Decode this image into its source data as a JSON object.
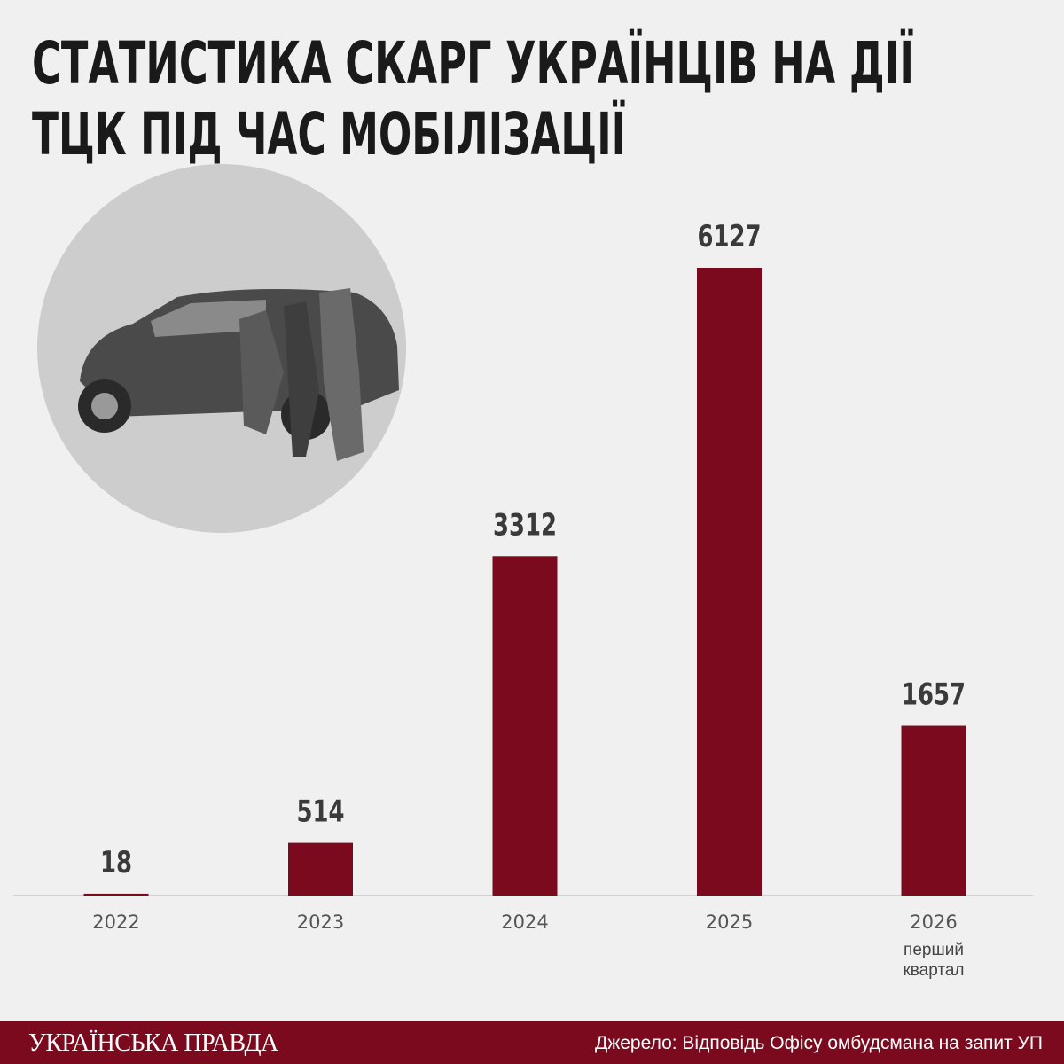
{
  "chart_data": {
    "type": "bar",
    "title": [
      "СТАТИСТИКА СКАРГ УКРАЇНЦІВ НА ДІЇ",
      "ТЦК ПІД ЧАС МОБІЛІЗАЦІЇ"
    ],
    "categories": [
      "2022",
      "2023",
      "2024",
      "2025",
      "2026"
    ],
    "values": [
      18,
      514,
      3312,
      6127,
      1657
    ],
    "color": "#7b0a1e",
    "note": "перший квартал",
    "brand": "УКРАЇНСЬКА ПРАВДА",
    "source": "Джерело: Відповідь Офісу омбудсмана на запит УП"
  }
}
